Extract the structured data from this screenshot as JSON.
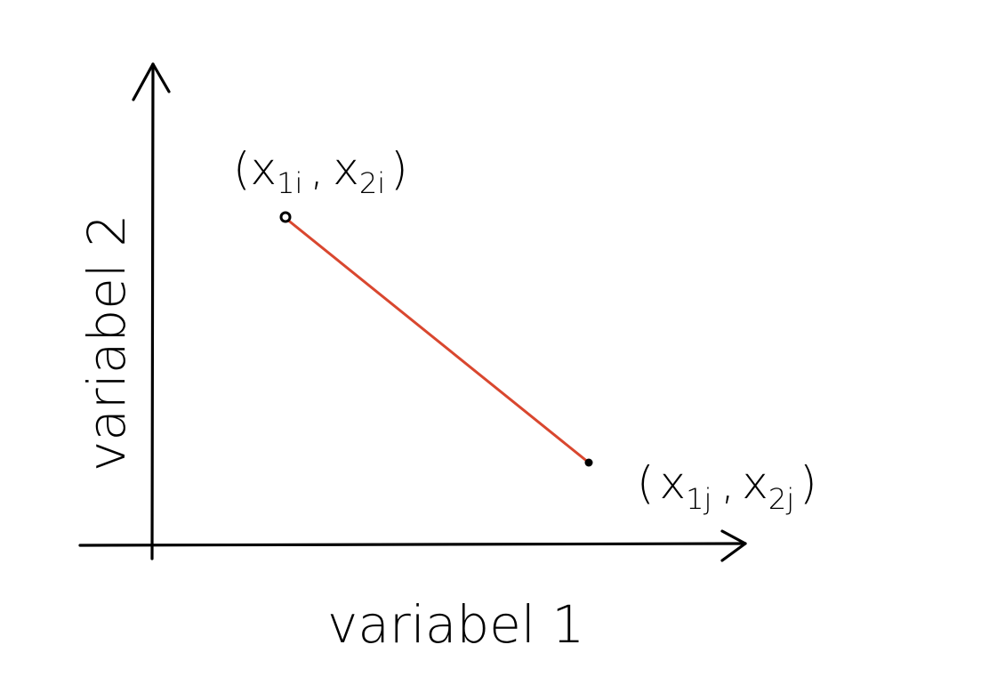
{
  "axes": {
    "x_label": "variabel 1",
    "y_label": "variabel 2"
  },
  "points": {
    "i": {
      "open": "(",
      "x_base": "x",
      "x_sub": "1i",
      "sep": ",",
      "y_base": "x",
      "y_sub": "2i",
      "close": ")"
    },
    "j": {
      "open": "(",
      "x_base": "x",
      "x_sub": "1j",
      "sep": ",",
      "y_base": "x",
      "y_sub": "2j",
      "close": ")"
    }
  },
  "colors": {
    "ink": "#000000",
    "distance_line": "#d9472f"
  }
}
